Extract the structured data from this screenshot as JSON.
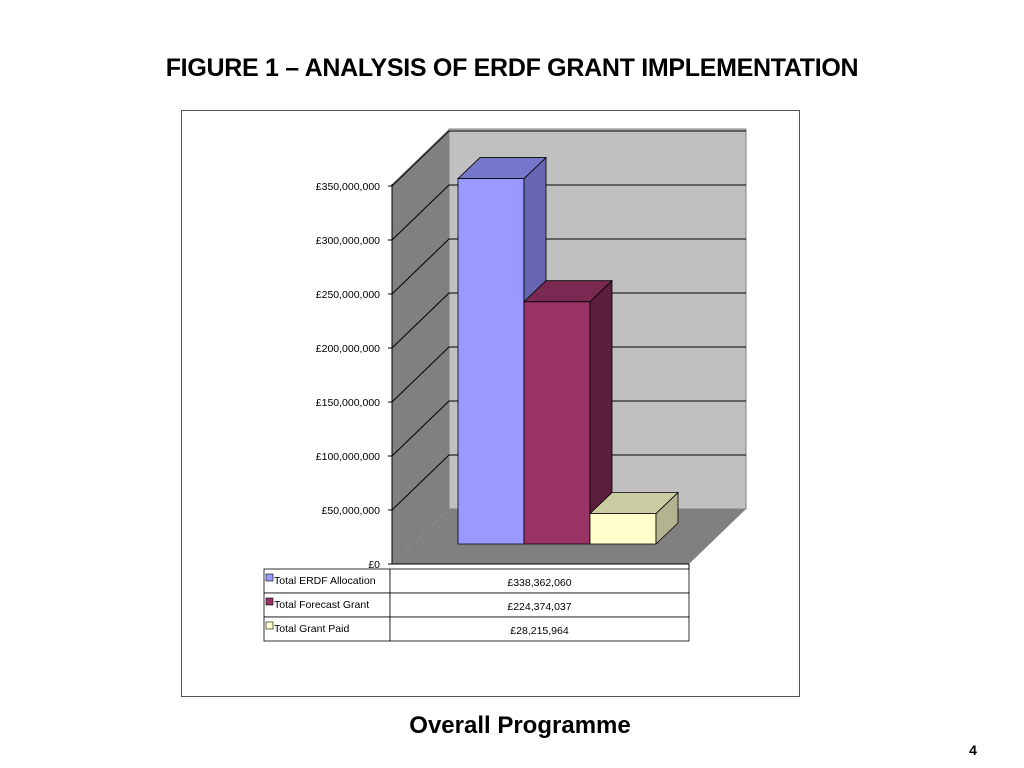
{
  "page": {
    "title": "FIGURE 1 – ANALYSIS OF ERDF GRANT IMPLEMENTATION",
    "subtitle": "Overall Programme",
    "page_number": "4"
  },
  "chart_data": {
    "type": "bar",
    "three_d": true,
    "ylim": [
      0,
      350000000
    ],
    "ytick_step": 50000000,
    "ytick_labels": [
      "£0",
      "£50,000,000",
      "£100,000,000",
      "£150,000,000",
      "£200,000,000",
      "£250,000,000",
      "£300,000,000",
      "£350,000,000"
    ],
    "grid": true,
    "legend": "data-table-below",
    "series": [
      {
        "name": "Total ERDF Allocation",
        "value": 338362060,
        "value_label": "£338,362,060",
        "color": "#9999ff",
        "side_color": "#6666b3",
        "top_color": "#7777cc"
      },
      {
        "name": "Total Forecast Grant",
        "value": 224374037,
        "value_label": "£224,374,037",
        "color": "#993366",
        "side_color": "#5c1e3d",
        "top_color": "#7a2952"
      },
      {
        "name": "Total Grant Paid",
        "value": 28215964,
        "value_label": "£28,215,964",
        "color": "#ffffcc",
        "side_color": "#b3b38f",
        "top_color": "#cccca3"
      }
    ]
  }
}
